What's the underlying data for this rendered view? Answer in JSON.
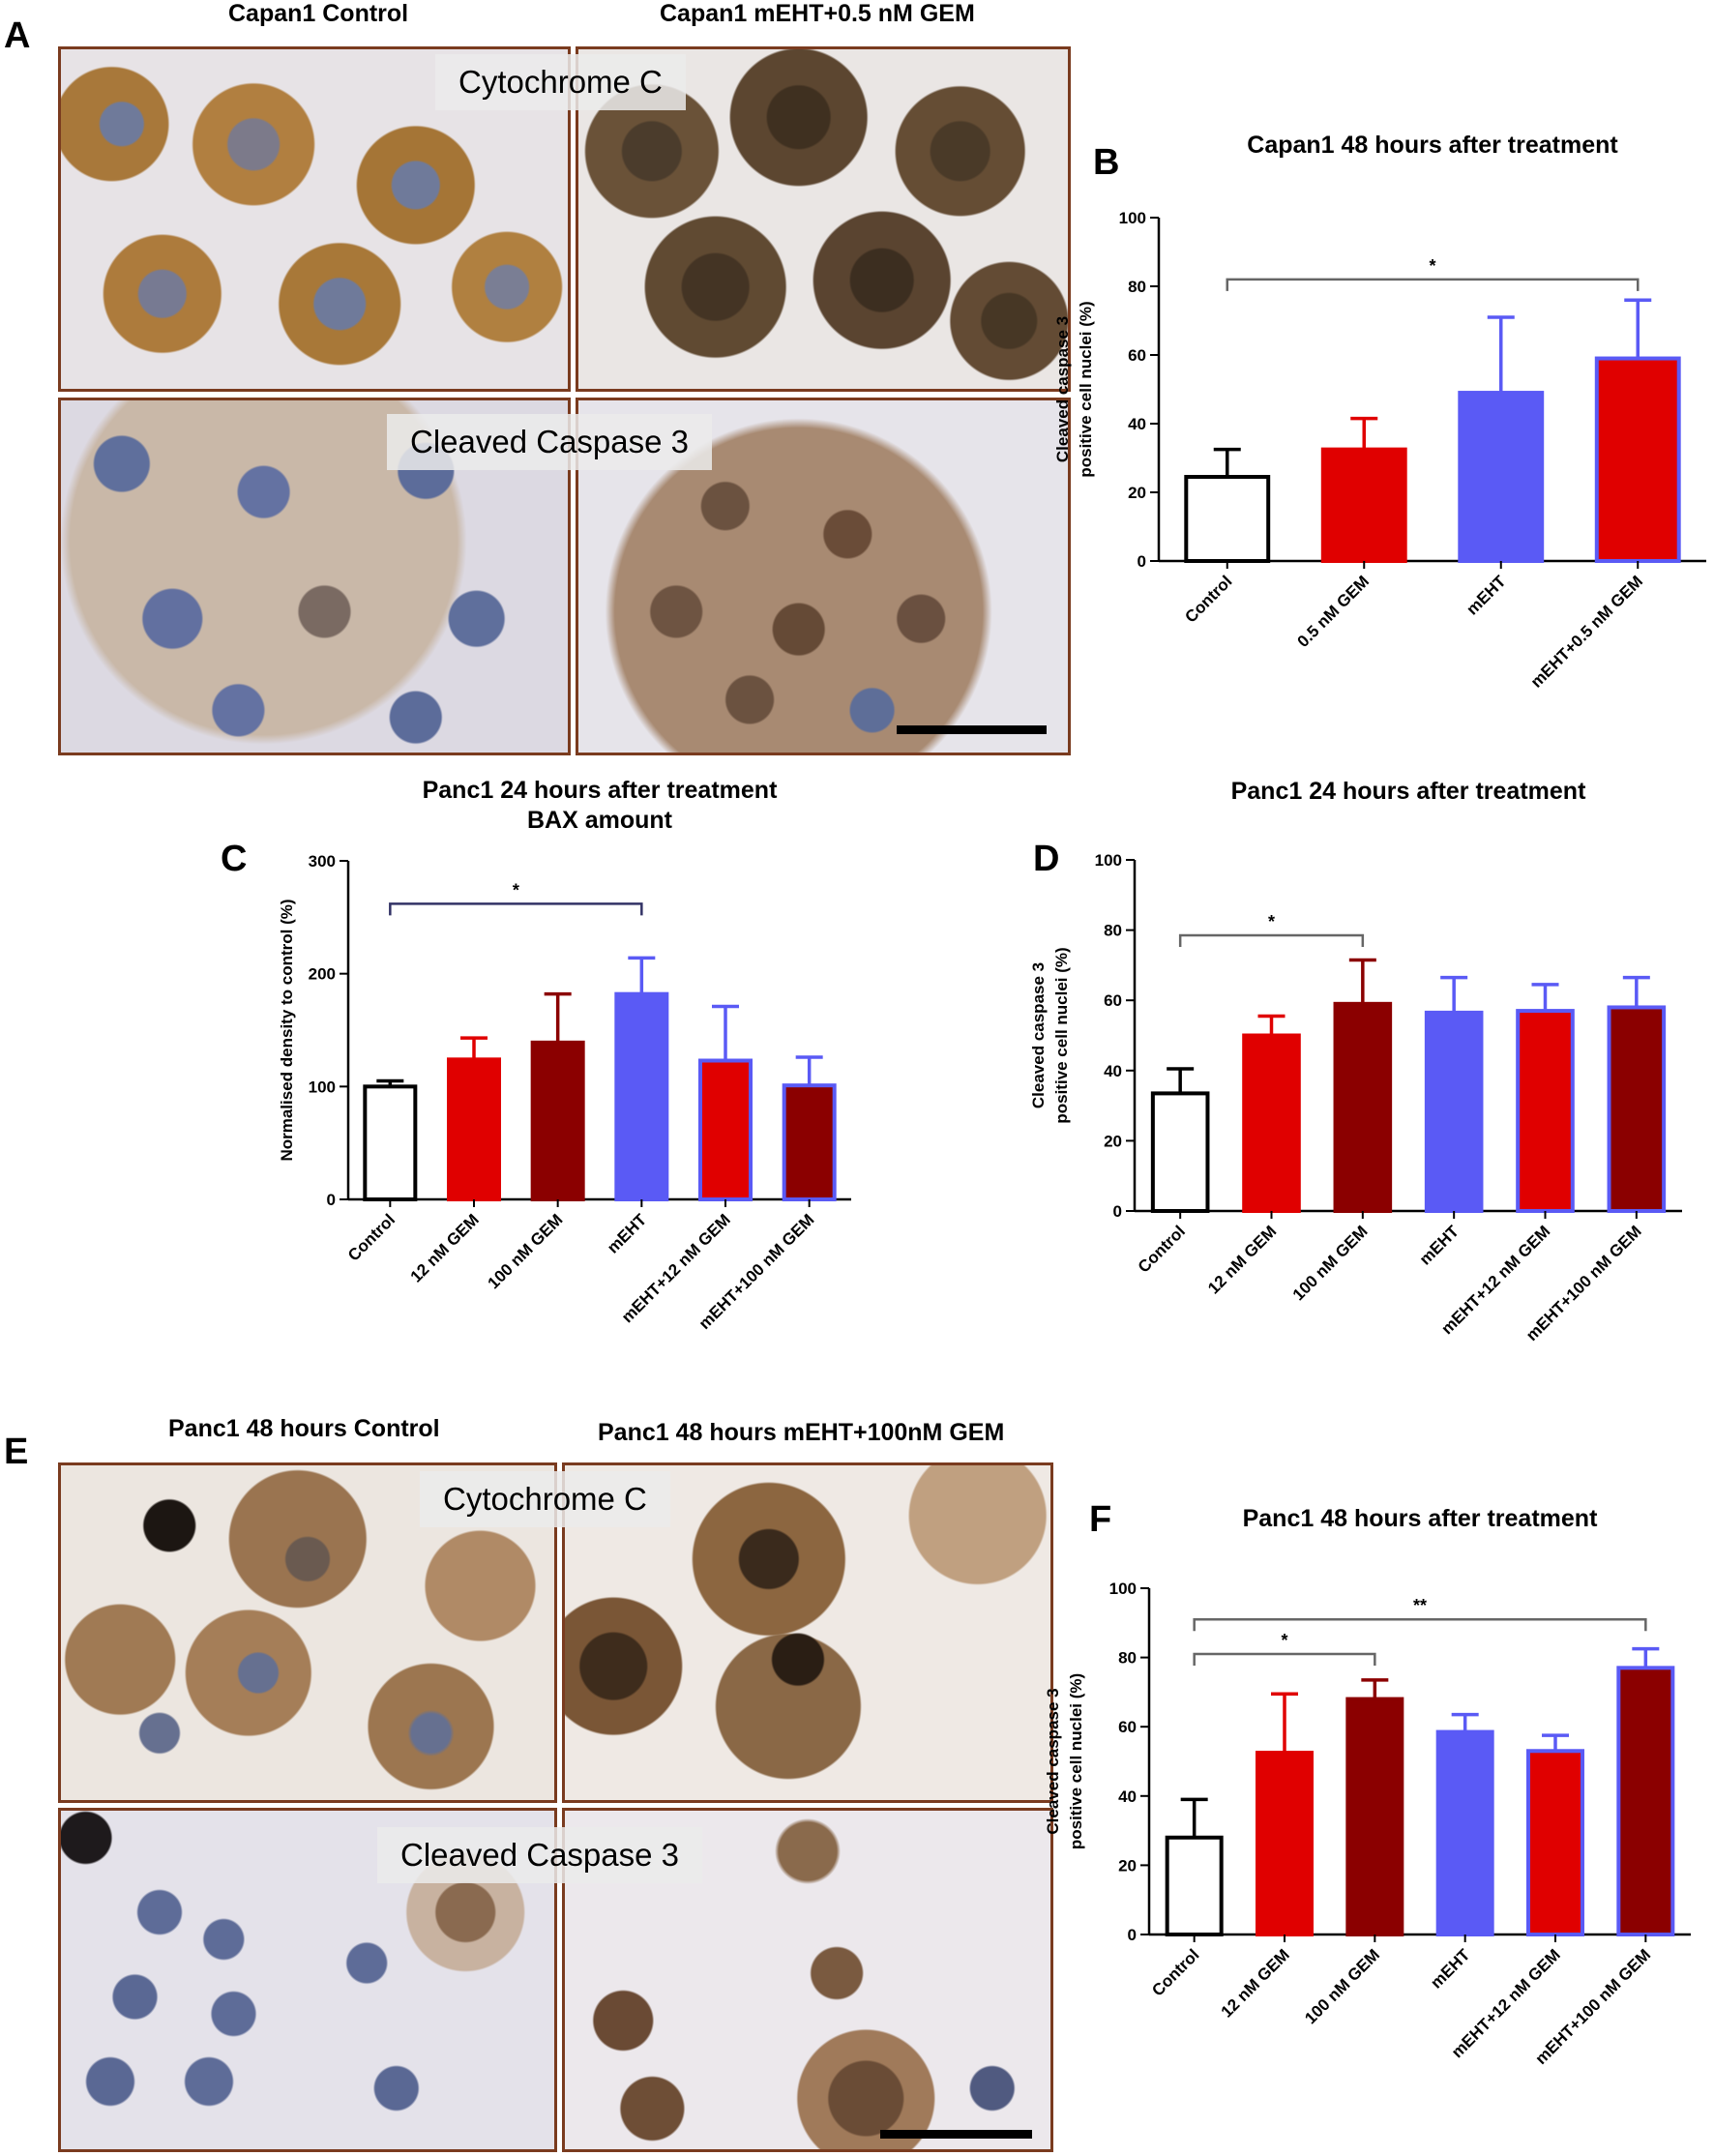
{
  "panels": {
    "A": {
      "letter": "A",
      "col_titles": [
        "Capan1 Control",
        "Capan1 mEHT+0.5 nM GEM"
      ],
      "row_labels": [
        "Cytochrome C",
        "Cleaved Caspase 3"
      ]
    },
    "B": {
      "letter": "B"
    },
    "C": {
      "letter": "C"
    },
    "D": {
      "letter": "D"
    },
    "E": {
      "letter": "E",
      "col_titles": [
        "Panc1 48 hours Control",
        "Panc1 48 hours mEHT+100nM GEM"
      ],
      "row_labels": [
        "Cytochrome C",
        "Cleaved Caspase 3"
      ]
    },
    "F": {
      "letter": "F"
    }
  },
  "colors": {
    "control": "#ffffff",
    "red": "#e00000",
    "darkred": "#8b0000",
    "blue": "#5a5af5",
    "frame": "#7a3b1f",
    "bracket_C": "#333366"
  },
  "chart_data": [
    {
      "id": "B",
      "type": "bar",
      "title": "Capan1 48 hours after treatment",
      "title2": "",
      "ylabel_lines": [
        "Cleaved caspase 3",
        "positive cell nuclei (%)"
      ],
      "ylim": [
        0,
        100
      ],
      "yticks": [
        "0",
        "20",
        "40",
        "60",
        "80",
        "100"
      ],
      "categories": [
        "Control",
        "0.5 nM GEM",
        "mEHT",
        "mEHT+0.5 nM GEM"
      ],
      "values": [
        24.5,
        32.5,
        49,
        59
      ],
      "errors": [
        8,
        9,
        22,
        17
      ],
      "fills": [
        "control",
        "red",
        "blue",
        "red"
      ],
      "edges": [
        "#000000",
        "#e00000",
        "#5a5af5",
        "#5a5af5"
      ],
      "brackets": [
        {
          "from": 0,
          "to": 3,
          "y": 82,
          "label": "*"
        }
      ]
    },
    {
      "id": "C",
      "type": "bar",
      "title": "Panc1 24 hours after treatment",
      "title2": "BAX amount",
      "ylabel_lines": [
        "Normalised density to control (%)"
      ],
      "ylim": [
        0,
        300
      ],
      "yticks": [
        "0",
        "100",
        "200",
        "300"
      ],
      "categories": [
        "Control",
        "12 nM GEM",
        "100 nM GEM",
        "mEHT",
        "mEHT+12 nM GEM",
        "mEHT+100 nM GEM"
      ],
      "values": [
        100,
        124,
        139,
        182,
        123,
        101
      ],
      "errors": [
        5,
        19,
        43,
        32,
        48,
        25
      ],
      "fills": [
        "control",
        "red",
        "darkred",
        "blue",
        "red",
        "darkred"
      ],
      "edges": [
        "#000000",
        "#e00000",
        "#8b0000",
        "#5a5af5",
        "#5a5af5",
        "#5a5af5"
      ],
      "brackets": [
        {
          "from": 0,
          "to": 3,
          "y": 262,
          "label": "*"
        }
      ]
    },
    {
      "id": "D",
      "type": "bar",
      "title": "Panc1 24 hours after treatment",
      "title2": "",
      "ylabel_lines": [
        "Cleaved caspase 3",
        "positive cell nuclei (%)"
      ],
      "ylim": [
        0,
        100
      ],
      "yticks": [
        "0",
        "20",
        "40",
        "60",
        "80",
        "100"
      ],
      "categories": [
        "Control",
        "12 nM GEM",
        "100 nM GEM",
        "mEHT",
        "mEHT+12 nM GEM",
        "mEHT+100 nM GEM"
      ],
      "values": [
        33.5,
        50,
        59,
        56.5,
        57,
        58
      ],
      "errors": [
        7,
        5.5,
        12.5,
        10,
        7.5,
        8.5
      ],
      "fills": [
        "control",
        "red",
        "darkred",
        "blue",
        "red",
        "darkred"
      ],
      "edges": [
        "#000000",
        "#e00000",
        "#8b0000",
        "#5a5af5",
        "#5a5af5",
        "#5a5af5"
      ],
      "brackets": [
        {
          "from": 0,
          "to": 2,
          "y": 78.5,
          "label": "*"
        }
      ]
    },
    {
      "id": "F",
      "type": "bar",
      "title": "Panc1 48 hours after treatment",
      "title2": "",
      "ylabel_lines": [
        "Cleaved caspase 3",
        "positive cell nuclei (%)"
      ],
      "ylim": [
        0,
        100
      ],
      "yticks": [
        "0",
        "20",
        "40",
        "60",
        "80",
        "100"
      ],
      "categories": [
        "Control",
        "12 nM GEM",
        "100 nM GEM",
        "mEHT",
        "mEHT+12 nM GEM",
        "mEHT+100 nM GEM"
      ],
      "values": [
        28,
        52.5,
        68,
        58.5,
        53,
        77
      ],
      "errors": [
        11,
        17,
        5.5,
        5,
        4.5,
        5.5
      ],
      "fills": [
        "control",
        "red",
        "darkred",
        "blue",
        "red",
        "darkred"
      ],
      "edges": [
        "#000000",
        "#e00000",
        "#8b0000",
        "#5a5af5",
        "#5a5af5",
        "#5a5af5"
      ],
      "brackets": [
        {
          "from": 0,
          "to": 2,
          "y": 81,
          "label": "*"
        },
        {
          "from": 0,
          "to": 5,
          "y": 91,
          "label": "**"
        }
      ]
    }
  ]
}
